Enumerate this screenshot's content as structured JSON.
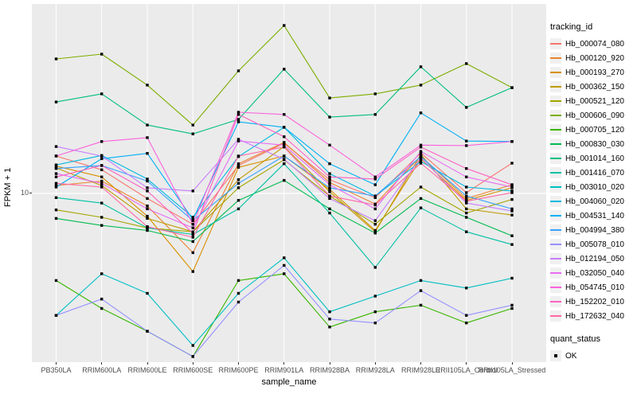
{
  "legend": {
    "tracking_title": "tracking_id",
    "quant_title": "quant_status",
    "quant_items": [
      {
        "label": "OK"
      }
    ]
  },
  "chart_data": {
    "type": "line",
    "title": "",
    "xlabel": "sample_name",
    "ylabel": "FPKM + 1",
    "yscale": "log10",
    "y_break_label": "10",
    "y_break_value": 10,
    "ylim": [
      1.3,
      95
    ],
    "grid": "white major gridlines on gray panel",
    "legend_position": "right",
    "point_shape": "black square (quant_status OK)",
    "panel_background": "#EBEBEB",
    "categories": [
      "PB350LA",
      "RRIM600LA",
      "RRIM600LE",
      "RRIM600SE",
      "RRIM600PE",
      "RRIM901LA",
      "RRIM928BA",
      "RRIM928LA",
      "RRIM928LE",
      "RRII105LA_Control",
      "RRII105LA_Stressed"
    ],
    "series": [
      {
        "name": "Hb_000074_080",
        "color": "#F8766D",
        "values": [
          15.7,
          13.3,
          9.4,
          6.9,
          14.0,
          18.3,
          11.8,
          9.5,
          16.3,
          10.1,
          14.4
        ]
      },
      {
        "name": "Hb_000120_920",
        "color": "#EA8331",
        "values": [
          11.0,
          11.6,
          8.6,
          4.9,
          14.3,
          18.5,
          11.4,
          8.8,
          15.7,
          9.4,
          11.1
        ]
      },
      {
        "name": "Hb_000193_270",
        "color": "#D89000",
        "values": [
          13.9,
          12.2,
          7.6,
          3.9,
          13.7,
          15.7,
          10.5,
          6.4,
          15.2,
          9.2,
          10.7
        ]
      },
      {
        "name": "Hb_000362_150",
        "color": "#C09B00",
        "values": [
          13.6,
          11.0,
          7.4,
          6.3,
          11.8,
          17.6,
          10.2,
          6.3,
          16.0,
          8.3,
          7.7
        ]
      },
      {
        "name": "Hb_000521_120",
        "color": "#A3A500",
        "values": [
          8.2,
          7.5,
          6.6,
          6.3,
          10.7,
          15.0,
          9.7,
          6.9,
          10.8,
          7.9,
          9.3
        ]
      },
      {
        "name": "Hb_000606_090",
        "color": "#7CAE00",
        "values": [
          50.6,
          53.6,
          36.9,
          22.8,
          43.8,
          75.7,
          31.6,
          33.2,
          36.9,
          47.8,
          35.8
        ]
      },
      {
        "name": "Hb_000705_120",
        "color": "#39B600",
        "values": [
          3.5,
          2.5,
          1.9,
          1.4,
          3.5,
          3.8,
          2.0,
          2.4,
          2.6,
          2.1,
          2.5
        ]
      },
      {
        "name": "Hb_000830_030",
        "color": "#00BB4E",
        "values": [
          7.4,
          6.8,
          6.4,
          5.6,
          9.2,
          11.7,
          8.3,
          6.2,
          9.4,
          7.5,
          6.0
        ]
      },
      {
        "name": "Hb_001014_160",
        "color": "#00BF7D",
        "values": [
          30.1,
          33.2,
          22.8,
          20.5,
          24.4,
          44.7,
          25.1,
          25.9,
          46.0,
          28.2,
          35.8
        ]
      },
      {
        "name": "Hb_001416_070",
        "color": "#00C1A3",
        "values": [
          9.5,
          8.9,
          6.6,
          6.1,
          8.3,
          14.3,
          7.9,
          4.1,
          8.4,
          6.3,
          5.4
        ]
      },
      {
        "name": "Hb_003010_020",
        "color": "#00BFC4",
        "values": [
          2.3,
          3.8,
          3.0,
          1.6,
          3.0,
          4.6,
          2.4,
          2.9,
          3.5,
          3.2,
          3.6
        ]
      },
      {
        "name": "Hb_004060_020",
        "color": "#00BAE0",
        "values": [
          14.1,
          15.8,
          11.9,
          7.5,
          15.6,
          22.2,
          12.7,
          9.7,
          14.7,
          10.8,
          10.3
        ]
      },
      {
        "name": "Hb_004531_140",
        "color": "#00B0F6",
        "values": [
          10.8,
          15.2,
          16.2,
          7.3,
          23.7,
          22.2,
          14.3,
          11.1,
          26.4,
          18.8,
          18.7
        ]
      },
      {
        "name": "Hb_004994_380",
        "color": "#35A2FF",
        "values": [
          13.5,
          14.0,
          11.6,
          7.2,
          11.3,
          15.7,
          10.7,
          9.7,
          15.6,
          9.7,
          8.3
        ]
      },
      {
        "name": "Hb_005078_010",
        "color": "#9590FF",
        "values": [
          2.3,
          2.8,
          1.9,
          1.4,
          2.7,
          4.2,
          2.2,
          2.1,
          3.1,
          2.3,
          2.6
        ]
      },
      {
        "name": "Hb_012194_050",
        "color": "#C77CFF",
        "values": [
          17.6,
          15.7,
          10.7,
          10.3,
          19.2,
          15.1,
          9.4,
          7.2,
          15.4,
          8.9,
          8.1
        ]
      },
      {
        "name": "Hb_032050_040",
        "color": "#E76BF3",
        "values": [
          12.7,
          11.3,
          8.3,
          6.6,
          18.8,
          17.9,
          11.1,
          8.3,
          16.6,
          12.2,
          10.8
        ]
      },
      {
        "name": "Hb_054745_010",
        "color": "#FA62DB",
        "values": [
          15.7,
          18.7,
          19.6,
          6.9,
          26.6,
          25.9,
          17.9,
          12.2,
          17.9,
          17.8,
          18.7
        ]
      },
      {
        "name": "Hb_152202_010",
        "color": "#FF61C3",
        "values": [
          12.2,
          14.0,
          10.3,
          6.2,
          25.9,
          19.8,
          12.2,
          11.9,
          17.5,
          13.5,
          11.1
        ]
      },
      {
        "name": "Hb_172632_040",
        "color": "#FF67A4",
        "values": [
          11.3,
          10.8,
          6.7,
          5.9,
          15.7,
          17.5,
          9.7,
          8.7,
          14.4,
          9.1,
          10.1
        ]
      }
    ]
  }
}
